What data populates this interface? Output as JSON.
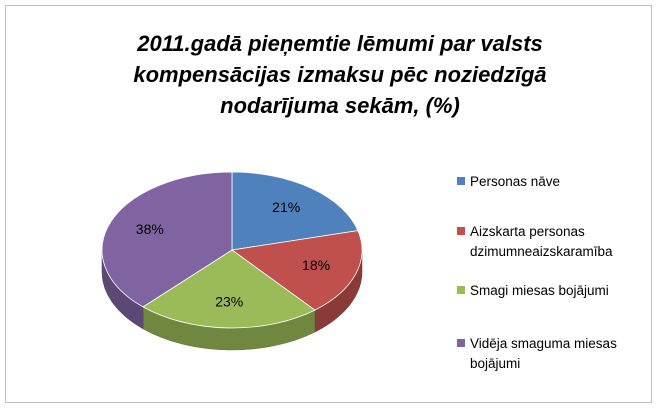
{
  "chart_data": {
    "type": "pie",
    "title": "2011.gadā pieņemtie lēmumi par valsts kompensācijas izmaksu pēc noziedzīgā nodarījuma sekām, (%)",
    "categories": [
      "Personas nāve",
      "Aizskarta personas dzimumneaizskaramība",
      "Smagi miesas bojājumi",
      "Vidēja smaguma miesas bojājumi"
    ],
    "values": [
      21,
      18,
      23,
      38
    ],
    "value_labels": [
      "21%",
      "18%",
      "23%",
      "38%"
    ],
    "colors": [
      "#4f81bd",
      "#c0504d",
      "#9bbb59",
      "#8064a2"
    ],
    "legend": "right"
  }
}
